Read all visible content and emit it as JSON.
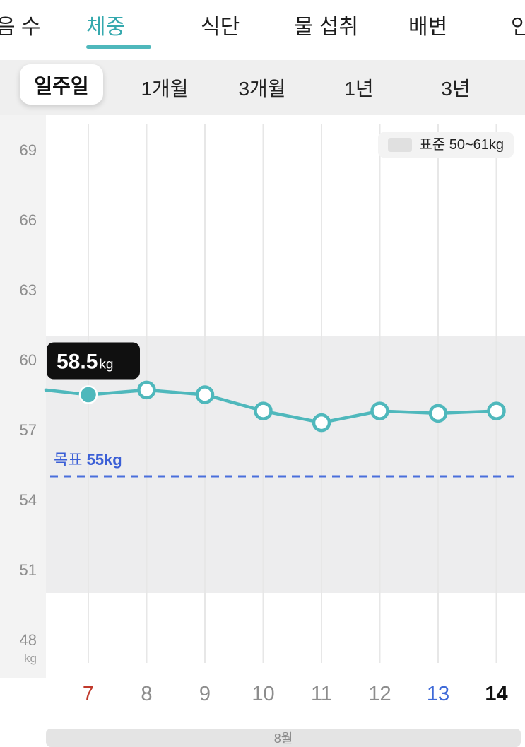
{
  "tabs": {
    "active_index": 1,
    "items": [
      {
        "label": "음 수"
      },
      {
        "label": "체중"
      },
      {
        "label": "식단"
      },
      {
        "label": "물 섭취"
      },
      {
        "label": "배변"
      },
      {
        "label": "인"
      }
    ]
  },
  "periods": {
    "active_index": 0,
    "items": [
      {
        "label": "일주일"
      },
      {
        "label": "1개월"
      },
      {
        "label": "3개월"
      },
      {
        "label": "1년"
      },
      {
        "label": "3년"
      }
    ]
  },
  "legend": {
    "label": "표준 50~61kg"
  },
  "month": {
    "label": "8월"
  },
  "colors": {
    "accent_teal": "#4fb8bc",
    "tab_active": "#35a9ae",
    "goal_line_blue": "#4a6fdc",
    "goal_text_blue": "#3b5fd6",
    "today_red": "#c0392b",
    "selected_day_blue": "#3f6ad8",
    "band_gray": "#ededee",
    "grid_gray": "#e7e7e7",
    "tooltip_bg": "#101010",
    "axis_strip": "#f3f3f3"
  },
  "chart_data": {
    "type": "line",
    "title": "체중 (주간)",
    "x": [
      7,
      8,
      9,
      10,
      11,
      12,
      13,
      14
    ],
    "x_labels": [
      {
        "text": "7",
        "color": "#c0392b",
        "bold": false
      },
      {
        "text": "8",
        "color": "#8d8d8d",
        "bold": false
      },
      {
        "text": "9",
        "color": "#8d8d8d",
        "bold": false
      },
      {
        "text": "10",
        "color": "#8d8d8d",
        "bold": false
      },
      {
        "text": "11",
        "color": "#8d8d8d",
        "bold": false
      },
      {
        "text": "12",
        "color": "#8d8d8d",
        "bold": false
      },
      {
        "text": "13",
        "color": "#3f6ad8",
        "bold": false
      },
      {
        "text": "14",
        "color": "#111111",
        "bold": true
      }
    ],
    "series": [
      {
        "name": "체중",
        "values": [
          58.5,
          58.7,
          58.5,
          57.8,
          57.3,
          57.8,
          57.7,
          57.8
        ]
      }
    ],
    "edge_value": 58.7,
    "unit": "kg",
    "yticks": [
      69,
      66,
      63,
      60,
      57,
      54,
      51,
      48
    ],
    "ylim": [
      46.5,
      70.5
    ],
    "grid": "vertical",
    "legend_position": "top-right",
    "goal": {
      "label": "목표",
      "value": 55,
      "display": "55kg"
    },
    "standard_range": {
      "label": "표준 50~61kg",
      "min": 50,
      "max": 61
    },
    "selected_point": {
      "x": 7,
      "value": "58.5",
      "unit": "kg"
    },
    "month_label": "8월"
  }
}
